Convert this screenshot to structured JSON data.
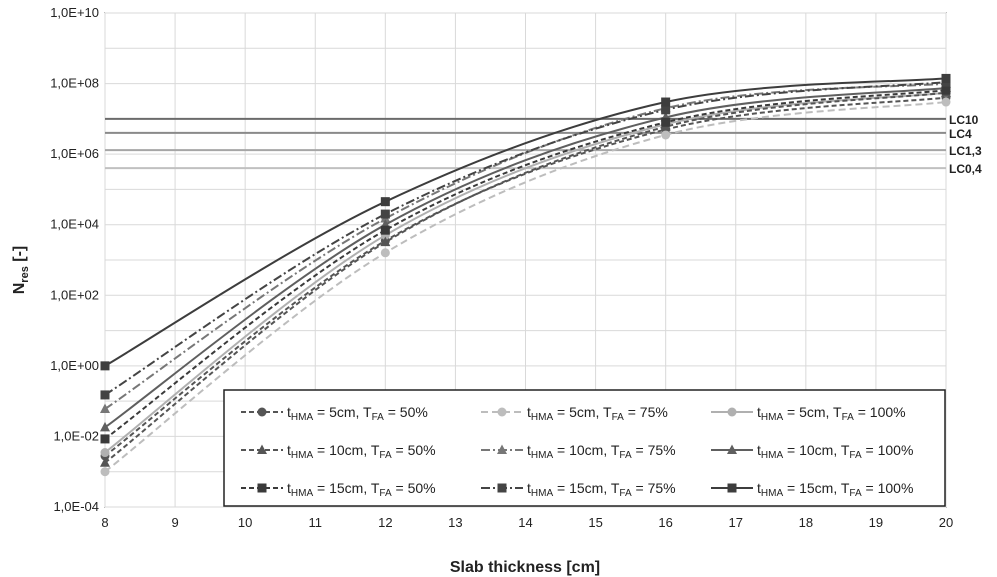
{
  "chart_data": {
    "type": "line",
    "xlabel": "Slab thickness [cm]",
    "ylabel": "N",
    "ylabel_sub": "res",
    "ylabel_suffix": " [-]",
    "xlim": [
      8,
      20
    ],
    "ylim": [
      0.0001,
      10000000000
    ],
    "yscale": "log",
    "grid": true,
    "x_ticks": [
      "8",
      "9",
      "10",
      "11",
      "12",
      "13",
      "14",
      "15",
      "16",
      "17",
      "18",
      "19",
      "20"
    ],
    "y_ticks": [
      "1,0E-04",
      "1,0E-02",
      "1,0E+00",
      "1,0E+02",
      "1,0E+04",
      "1,0E+06",
      "1,0E+08",
      "1,0E+10"
    ],
    "legend_position": "bottom-right",
    "reference_lines": [
      {
        "label": "LC10",
        "value": 10000000,
        "color": "#6b6b6b"
      },
      {
        "label": "LC4",
        "value": 4000000,
        "color": "#8a8a8a"
      },
      {
        "label": "LC1,3",
        "value": 1300000,
        "color": "#a6a6a6"
      },
      {
        "label": "LC0,4",
        "value": 400000,
        "color": "#c0c0c0"
      }
    ],
    "x": [
      8,
      12,
      16,
      20
    ],
    "series": [
      {
        "name": "tHMA = 5cm, TFA = 50%",
        "t_hma": "5cm",
        "t_fa": "50%",
        "color": "#555555",
        "dash": "5,3",
        "marker": "circle",
        "values": [
          0.0028,
          3500,
          5000000,
          40000000
        ]
      },
      {
        "name": "tHMA = 5cm, TFA = 75%",
        "t_hma": "5cm",
        "t_fa": "75%",
        "color": "#bdbdbd",
        "dash": "7,4",
        "marker": "circle",
        "values": [
          0.001,
          1600,
          3500000,
          30000000
        ]
      },
      {
        "name": "tHMA = 5cm, TFA = 100%",
        "t_hma": "5cm",
        "t_fa": "100%",
        "color": "#b0b0b0",
        "dash": "",
        "marker": "circle",
        "values": [
          0.0035,
          5000,
          7000000,
          55000000
        ]
      },
      {
        "name": "tHMA = 10cm, TFA = 50%",
        "t_hma": "10cm",
        "t_fa": "50%",
        "color": "#555555",
        "dash": "5,3",
        "marker": "triangle",
        "values": [
          0.0018,
          3200,
          6000000,
          55000000
        ]
      },
      {
        "name": "tHMA = 10cm, TFA = 75%",
        "t_hma": "10cm",
        "t_fa": "75%",
        "color": "#777777",
        "dash": "9,3,2,3",
        "marker": "triangle",
        "values": [
          0.06,
          15000,
          20000000,
          100000000
        ]
      },
      {
        "name": "tHMA = 10cm, TFA = 100%",
        "t_hma": "10cm",
        "t_fa": "100%",
        "color": "#5f5f5f",
        "dash": "",
        "marker": "triangle",
        "values": [
          0.018,
          10000,
          11000000,
          75000000
        ]
      },
      {
        "name": "tHMA = 15cm, TFA = 50%",
        "t_hma": "15cm",
        "t_fa": "50%",
        "color": "#3a3a3a",
        "dash": "5,3",
        "marker": "square",
        "values": [
          0.0085,
          7000,
          8000000,
          65000000
        ]
      },
      {
        "name": "tHMA = 15cm, TFA = 75%",
        "t_hma": "15cm",
        "t_fa": "75%",
        "color": "#444444",
        "dash": "9,3,2,3",
        "marker": "square",
        "values": [
          0.15,
          20000,
          18000000,
          110000000
        ]
      },
      {
        "name": "tHMA = 15cm, TFA = 100%",
        "t_hma": "15cm",
        "t_fa": "100%",
        "color": "#3d3d3d",
        "dash": "",
        "marker": "square",
        "values": [
          1.0,
          45000,
          30000000,
          140000000
        ]
      }
    ]
  }
}
